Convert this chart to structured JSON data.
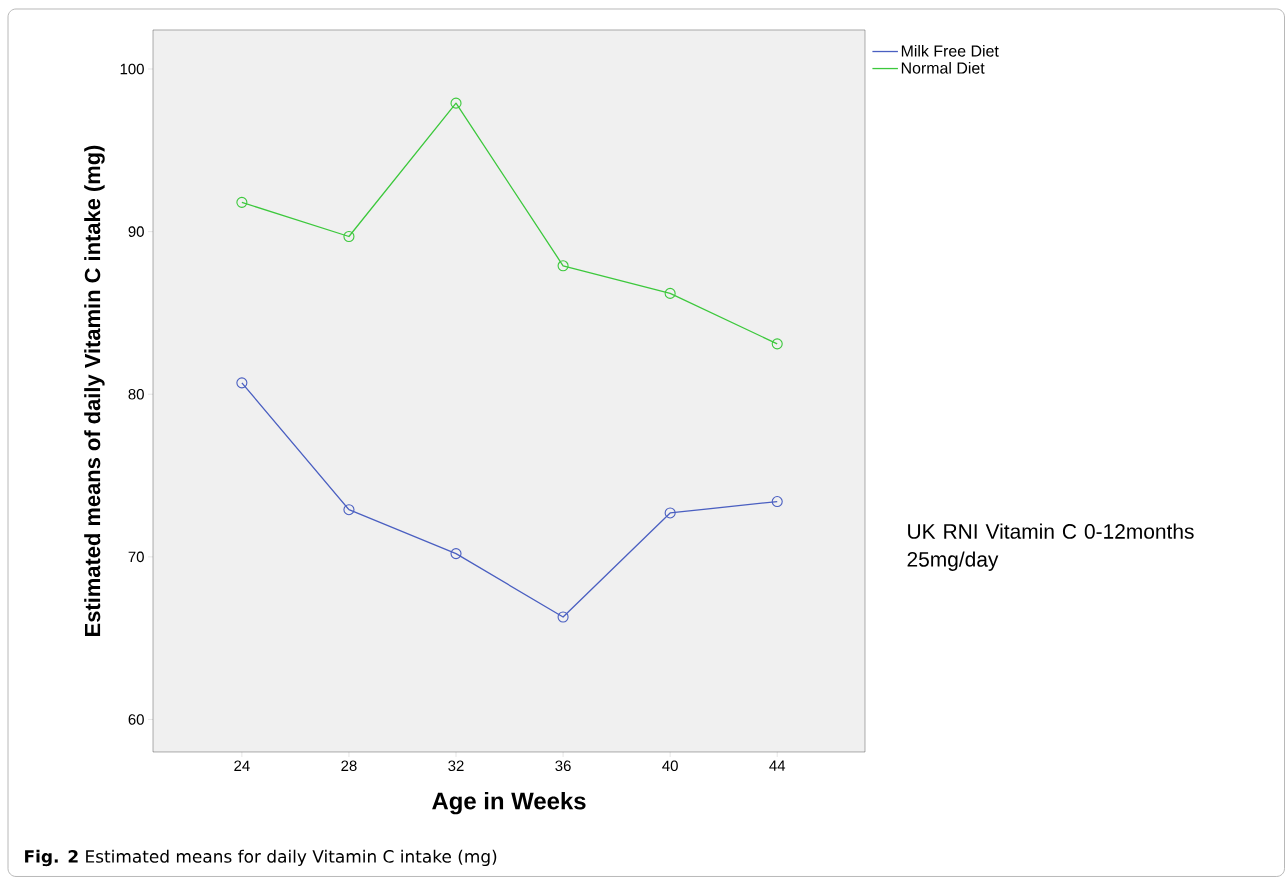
{
  "chart_data": {
    "type": "line",
    "xlabel": "Age in Weeks",
    "ylabel": "Estimated means of daily Vitamin C intake (mg)",
    "categories": [
      "24",
      "28",
      "32",
      "36",
      "40",
      "44"
    ],
    "series": [
      {
        "name": "Milk Free Diet",
        "color": "#4a5fc1",
        "values": [
          80.7,
          72.9,
          70.2,
          66.3,
          72.7,
          73.4
        ]
      },
      {
        "name": "Normal Diet",
        "color": "#3cc83c",
        "values": [
          91.8,
          89.7,
          97.9,
          87.9,
          86.2,
          83.1
        ]
      }
    ],
    "ylim": [
      58,
      102.4
    ],
    "yticks": [
      60,
      70,
      80,
      90,
      100
    ],
    "marker": "circle",
    "legend": "top right",
    "grid": false,
    "annotations": [
      "UK RNI Vitamin C 0-12months 25mg/day",
      "**Fig. 2** Estimated means for daily Vitamin C intake (mg)"
    ]
  }
}
